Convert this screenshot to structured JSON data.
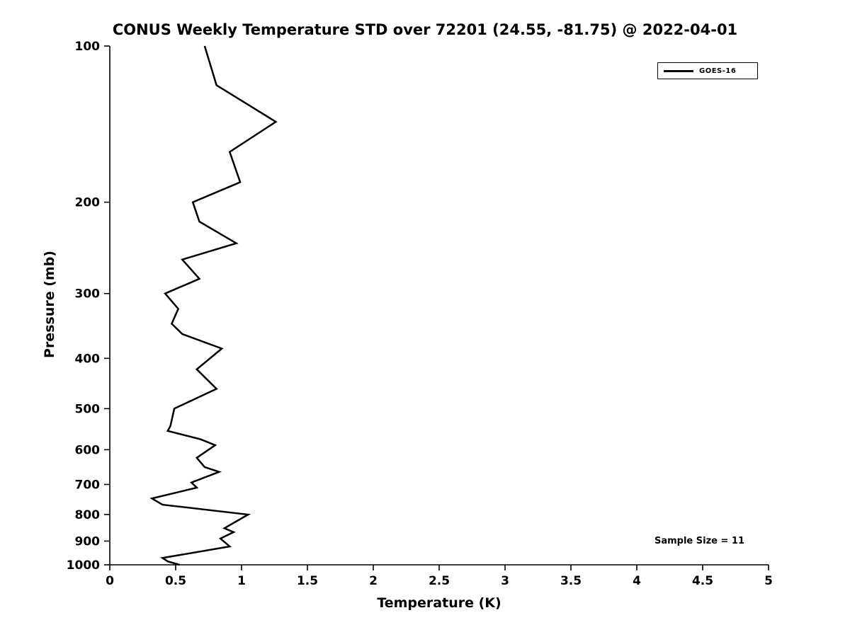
{
  "chart_data": {
    "type": "line",
    "title": "CONUS Weekly Temperature STD over 72201 (24.55, -81.75) @ 2022-04-01",
    "xlabel": "Temperature (K)",
    "ylabel": "Pressure (mb)",
    "xlim": [
      0,
      5
    ],
    "x_tick_values": [
      0,
      0.5,
      1,
      1.5,
      2,
      2.5,
      3,
      3.5,
      4,
      4.5,
      5
    ],
    "x_tick_labels": [
      "0",
      "0.5",
      "1",
      "1.5",
      "2",
      "2.5",
      "3",
      "3.5",
      "4",
      "4.5",
      "5"
    ],
    "ylim": [
      100,
      1000
    ],
    "y_scale": "log",
    "y_axis_direction": "inverted-pressure-downward",
    "y_tick_values": [
      100,
      200,
      300,
      400,
      500,
      600,
      700,
      800,
      900,
      1000
    ],
    "y_tick_labels": [
      "100",
      "200",
      "300",
      "400",
      "500",
      "600",
      "700",
      "800",
      "900",
      "1000"
    ],
    "grid": false,
    "line_color": "#000000",
    "line_width": 2.5,
    "legend": {
      "position": "top-right",
      "entries": [
        {
          "label": "GOES-16",
          "color": "#000000"
        }
      ]
    },
    "annotations": [
      {
        "text": "Sample Size = 11",
        "position": "bottom-right"
      }
    ],
    "series": [
      {
        "name": "GOES-16",
        "color": "#000000",
        "pressure_mb": [
          100,
          119,
          140,
          160,
          183,
          200,
          218,
          240,
          258,
          281,
          300,
          321,
          343,
          359,
          383,
          420,
          445,
          458,
          500,
          540,
          552,
          573,
          588,
          622,
          648,
          662,
          694,
          710,
          745,
          766,
          800,
          850,
          865,
          890,
          922,
          970,
          985,
          1000
        ],
        "temperature_K": [
          0.72,
          0.81,
          1.26,
          0.91,
          0.99,
          0.63,
          0.68,
          0.96,
          0.55,
          0.68,
          0.42,
          0.52,
          0.47,
          0.55,
          0.85,
          0.66,
          0.76,
          0.81,
          0.49,
          0.46,
          0.44,
          0.69,
          0.8,
          0.66,
          0.72,
          0.83,
          0.62,
          0.66,
          0.32,
          0.4,
          1.05,
          0.87,
          0.94,
          0.84,
          0.91,
          0.4,
          0.44,
          0.53
        ]
      }
    ]
  }
}
